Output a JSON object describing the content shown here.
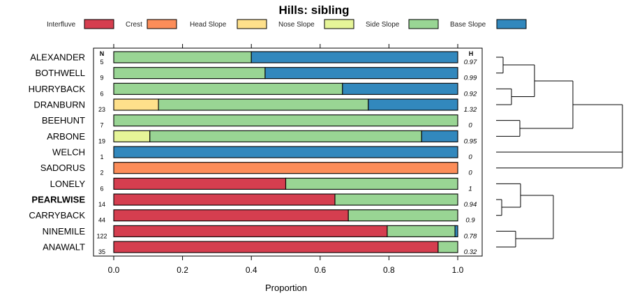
{
  "chart_data": {
    "type": "bar",
    "orientation": "horizontal-stacked",
    "title": "Hills: sibling",
    "xlabel": "Proportion",
    "xlim": [
      0,
      1
    ],
    "xticks": [
      "0.0",
      "0.2",
      "0.4",
      "0.6",
      "0.8",
      "1.0"
    ],
    "n_header": "N",
    "h_header": "H",
    "legend": [
      {
        "name": "Interfluve",
        "color": "#D53E4F"
      },
      {
        "name": "Crest",
        "color": "#FC8D59"
      },
      {
        "name": "Head Slope",
        "color": "#FEE08B"
      },
      {
        "name": "Nose Slope",
        "color": "#E6F598"
      },
      {
        "name": "Side Slope",
        "color": "#99D594"
      },
      {
        "name": "Base Slope",
        "color": "#3288BD"
      }
    ],
    "rows": [
      {
        "name": "ALEXANDER",
        "n": "5",
        "h": "0.97",
        "bold": false,
        "values": [
          0,
          0,
          0,
          0,
          0.4,
          0.6
        ]
      },
      {
        "name": "BOTHWELL",
        "n": "9",
        "h": "0.99",
        "bold": false,
        "values": [
          0,
          0,
          0,
          0,
          0.44,
          0.56
        ]
      },
      {
        "name": "HURRYBACK",
        "n": "6",
        "h": "0.92",
        "bold": false,
        "values": [
          0,
          0,
          0,
          0,
          0.665,
          0.335
        ]
      },
      {
        "name": "DRANBURN",
        "n": "23",
        "h": "1.32",
        "bold": false,
        "values": [
          0,
          0,
          0.13,
          0,
          0.61,
          0.26
        ]
      },
      {
        "name": "BEEHUNT",
        "n": "7",
        "h": "0",
        "bold": false,
        "values": [
          0,
          0,
          0,
          0,
          1.0,
          0
        ]
      },
      {
        "name": "ARBONE",
        "n": "19",
        "h": "0.95",
        "bold": false,
        "values": [
          0,
          0,
          0,
          0.105,
          0.79,
          0.105
        ]
      },
      {
        "name": "WELCH",
        "n": "1",
        "h": "0",
        "bold": false,
        "values": [
          0,
          0,
          0,
          0,
          0,
          1.0
        ]
      },
      {
        "name": "SADORUS",
        "n": "2",
        "h": "0",
        "bold": false,
        "values": [
          0,
          1.0,
          0,
          0,
          0,
          0
        ]
      },
      {
        "name": "LONELY",
        "n": "6",
        "h": "1",
        "bold": false,
        "values": [
          0.5,
          0,
          0,
          0,
          0.5,
          0
        ]
      },
      {
        "name": "PEARLWISE",
        "n": "14",
        "h": "0.94",
        "bold": true,
        "values": [
          0.643,
          0,
          0,
          0,
          0.357,
          0
        ]
      },
      {
        "name": "CARRYBACK",
        "n": "44",
        "h": "0.9",
        "bold": false,
        "values": [
          0.682,
          0,
          0,
          0,
          0.318,
          0
        ]
      },
      {
        "name": "NINEMILE",
        "n": "122",
        "h": "0.78",
        "bold": false,
        "values": [
          0.795,
          0,
          0,
          0,
          0.197,
          0.008
        ]
      },
      {
        "name": "ANAWALT",
        "n": "35",
        "h": "0.32",
        "bold": false,
        "values": [
          0.943,
          0,
          0,
          0,
          0.057,
          0
        ]
      }
    ]
  }
}
